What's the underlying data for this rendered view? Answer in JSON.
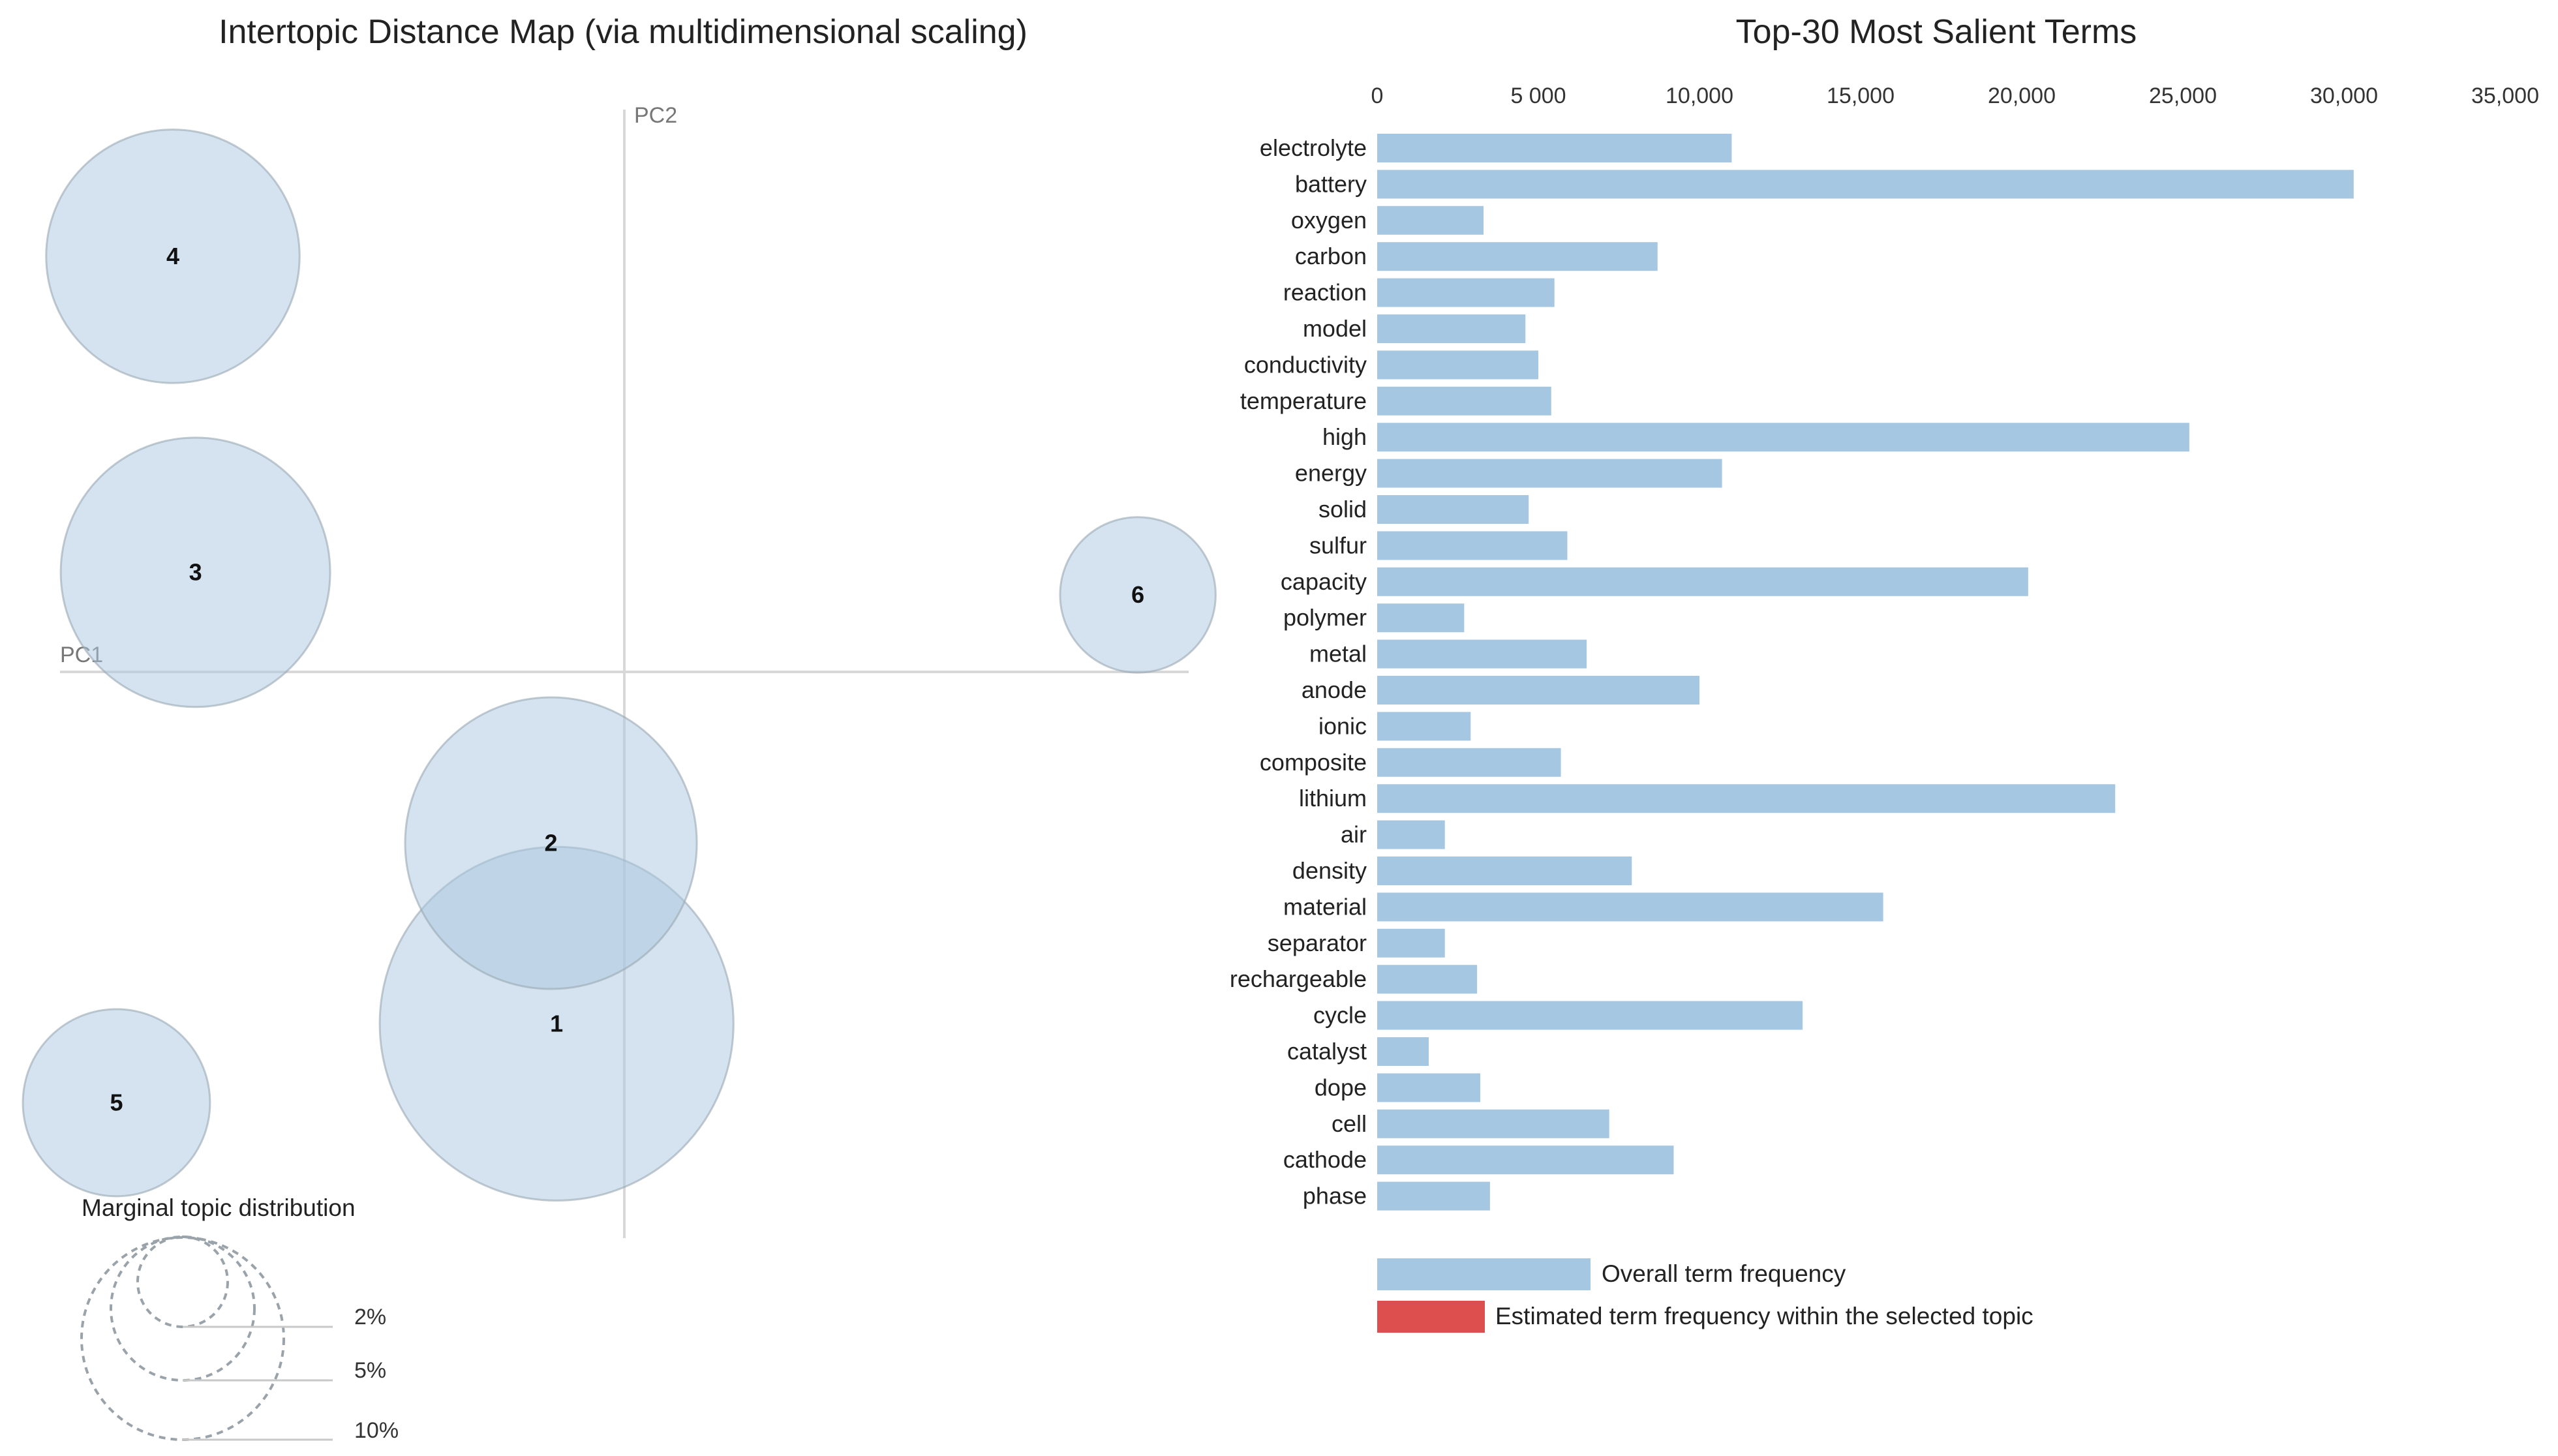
{
  "left_panel": {
    "title": "Intertopic Distance Map (via multidimensional scaling)",
    "axis_pc1": "PC1",
    "axis_pc2": "PC2",
    "marginal_title": "Marginal topic distribution",
    "marginal_levels": [
      "2%",
      "5%",
      "10%"
    ]
  },
  "right_panel": {
    "title": "Top-30 Most Salient Terms",
    "legend_overall": "Overall term frequency",
    "legend_estimated": "Estimated term frequency within the selected topic"
  },
  "colors": {
    "bubble_fill": "#a9c7df",
    "bar_fill": "#a6c7e1",
    "estimated_fill": "#dd4f4f",
    "axis_line": "#d8d8d8",
    "circle_stroke": "#9aa8b3"
  },
  "chart_data": [
    {
      "type": "scatter",
      "title": "Intertopic Distance Map (via multidimensional scaling)",
      "xlabel": "PC1",
      "ylabel": "PC2",
      "xlim": [
        -0.5,
        0.5
      ],
      "ylim": [
        -0.5,
        0.5
      ],
      "points": [
        {
          "topic": "1",
          "x": -0.06,
          "y": -0.31,
          "marginal_pct": 15.0
        },
        {
          "topic": "2",
          "x": -0.065,
          "y": -0.15,
          "marginal_pct": 10.2
        },
        {
          "topic": "3",
          "x": -0.38,
          "y": 0.09,
          "marginal_pct": 8.7
        },
        {
          "topic": "4",
          "x": -0.4,
          "y": 0.37,
          "marginal_pct": 7.7
        },
        {
          "topic": "5",
          "x": -0.45,
          "y": -0.38,
          "marginal_pct": 4.2
        },
        {
          "topic": "6",
          "x": 0.455,
          "y": 0.07,
          "marginal_pct": 2.9
        }
      ]
    },
    {
      "type": "bar",
      "orientation": "horizontal",
      "title": "Top-30 Most Salient Terms",
      "xlim": [
        0,
        35000
      ],
      "ticks": [
        0,
        5000,
        10000,
        15000,
        20000,
        25000,
        30000,
        35000
      ],
      "tick_labels": [
        "0",
        "5 000",
        "10,000",
        "15,000",
        "20,000",
        "25,000",
        "30,000",
        "35,000"
      ],
      "categories": [
        "electrolyte",
        "battery",
        "oxygen",
        "carbon",
        "reaction",
        "model",
        "conductivity",
        "temperature",
        "high",
        "energy",
        "solid",
        "sulfur",
        "capacity",
        "polymer",
        "metal",
        "anode",
        "ionic",
        "composite",
        "lithium",
        "air",
        "density",
        "material",
        "separator",
        "rechargeable",
        "cycle",
        "catalyst",
        "dope",
        "cell",
        "cathode",
        "phase"
      ],
      "series": [
        {
          "name": "Overall term frequency",
          "values": [
            11000,
            30300,
            3300,
            8700,
            5500,
            4600,
            5000,
            5400,
            25200,
            10700,
            4700,
            5900,
            20200,
            2700,
            6500,
            10000,
            2900,
            5700,
            22900,
            2100,
            7900,
            15700,
            2100,
            3100,
            13200,
            1600,
            3200,
            7200,
            9200,
            3500
          ]
        }
      ]
    }
  ]
}
